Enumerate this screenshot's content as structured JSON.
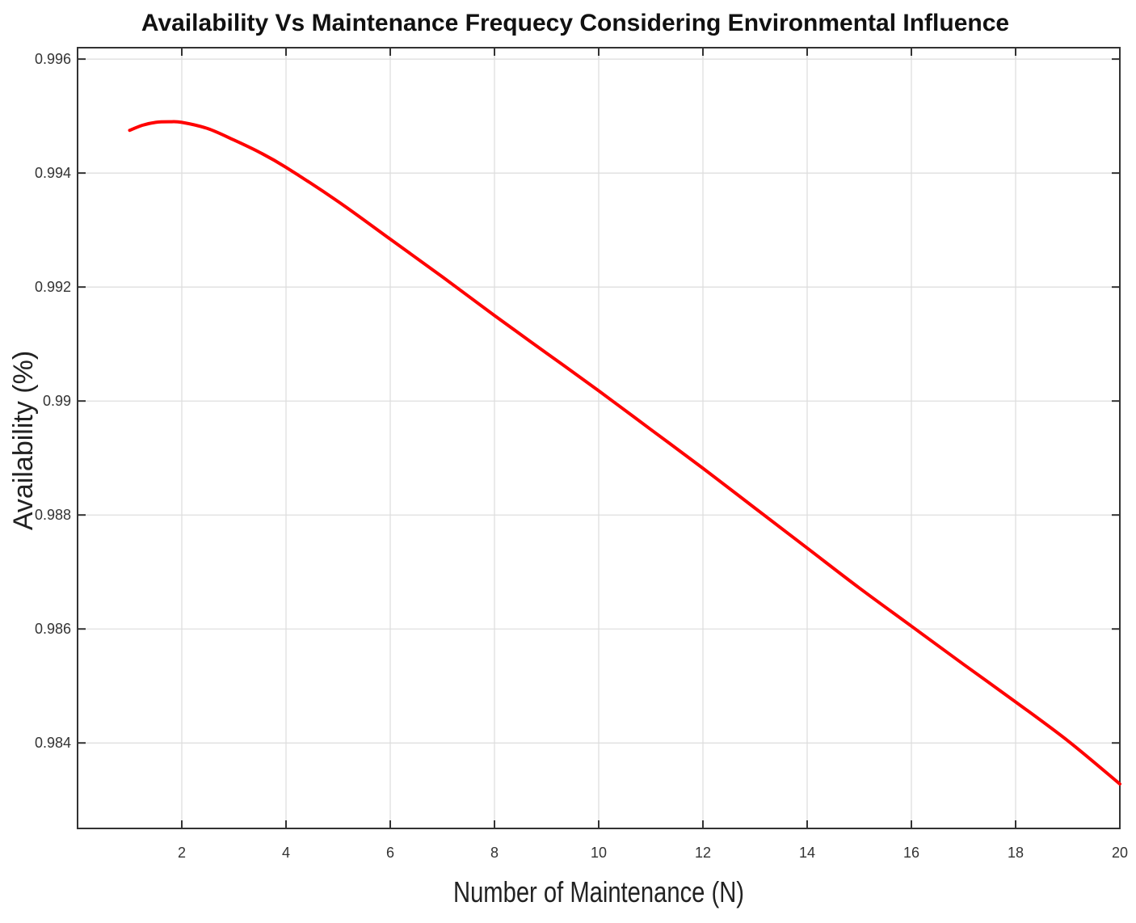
{
  "chart_data": {
    "type": "line",
    "title": "Availability Vs Maintenance Frequecy Considering Environmental Influence",
    "xlabel": "Number of Maintenance (N)",
    "ylabel": "Availability (%)",
    "xlim": [
      0,
      20
    ],
    "ylim": [
      0.9825,
      0.9962
    ],
    "xticks": [
      2,
      4,
      6,
      8,
      10,
      12,
      14,
      16,
      18,
      20
    ],
    "xtick_labels": [
      "2",
      "4",
      "6",
      "8",
      "10",
      "12",
      "14",
      "16",
      "18",
      "20"
    ],
    "yticks": [
      0.984,
      0.986,
      0.988,
      0.99,
      0.992,
      0.994,
      0.996
    ],
    "ytick_labels": [
      "0.984",
      "0.986",
      "0.988",
      "0.99",
      "0.992",
      "0.994",
      "0.996"
    ],
    "grid": true,
    "series": [
      {
        "color": "#ff0000",
        "x": [
          1,
          1.25,
          1.5,
          1.75,
          2,
          2.5,
          3,
          3.5,
          4,
          5,
          6,
          7,
          8,
          9,
          10,
          11,
          12,
          13,
          14,
          15,
          16,
          17,
          18,
          19,
          20
        ],
        "y": [
          0.99475,
          0.99484,
          0.99489,
          0.9949,
          0.99489,
          0.99478,
          0.99458,
          0.99436,
          0.9941,
          0.9935,
          0.99284,
          0.99218,
          0.9915,
          0.99084,
          0.99018,
          0.9895,
          0.98882,
          0.98812,
          0.98742,
          0.98672,
          0.98605,
          0.98538,
          0.98472,
          0.98404,
          0.98328
        ]
      }
    ]
  }
}
